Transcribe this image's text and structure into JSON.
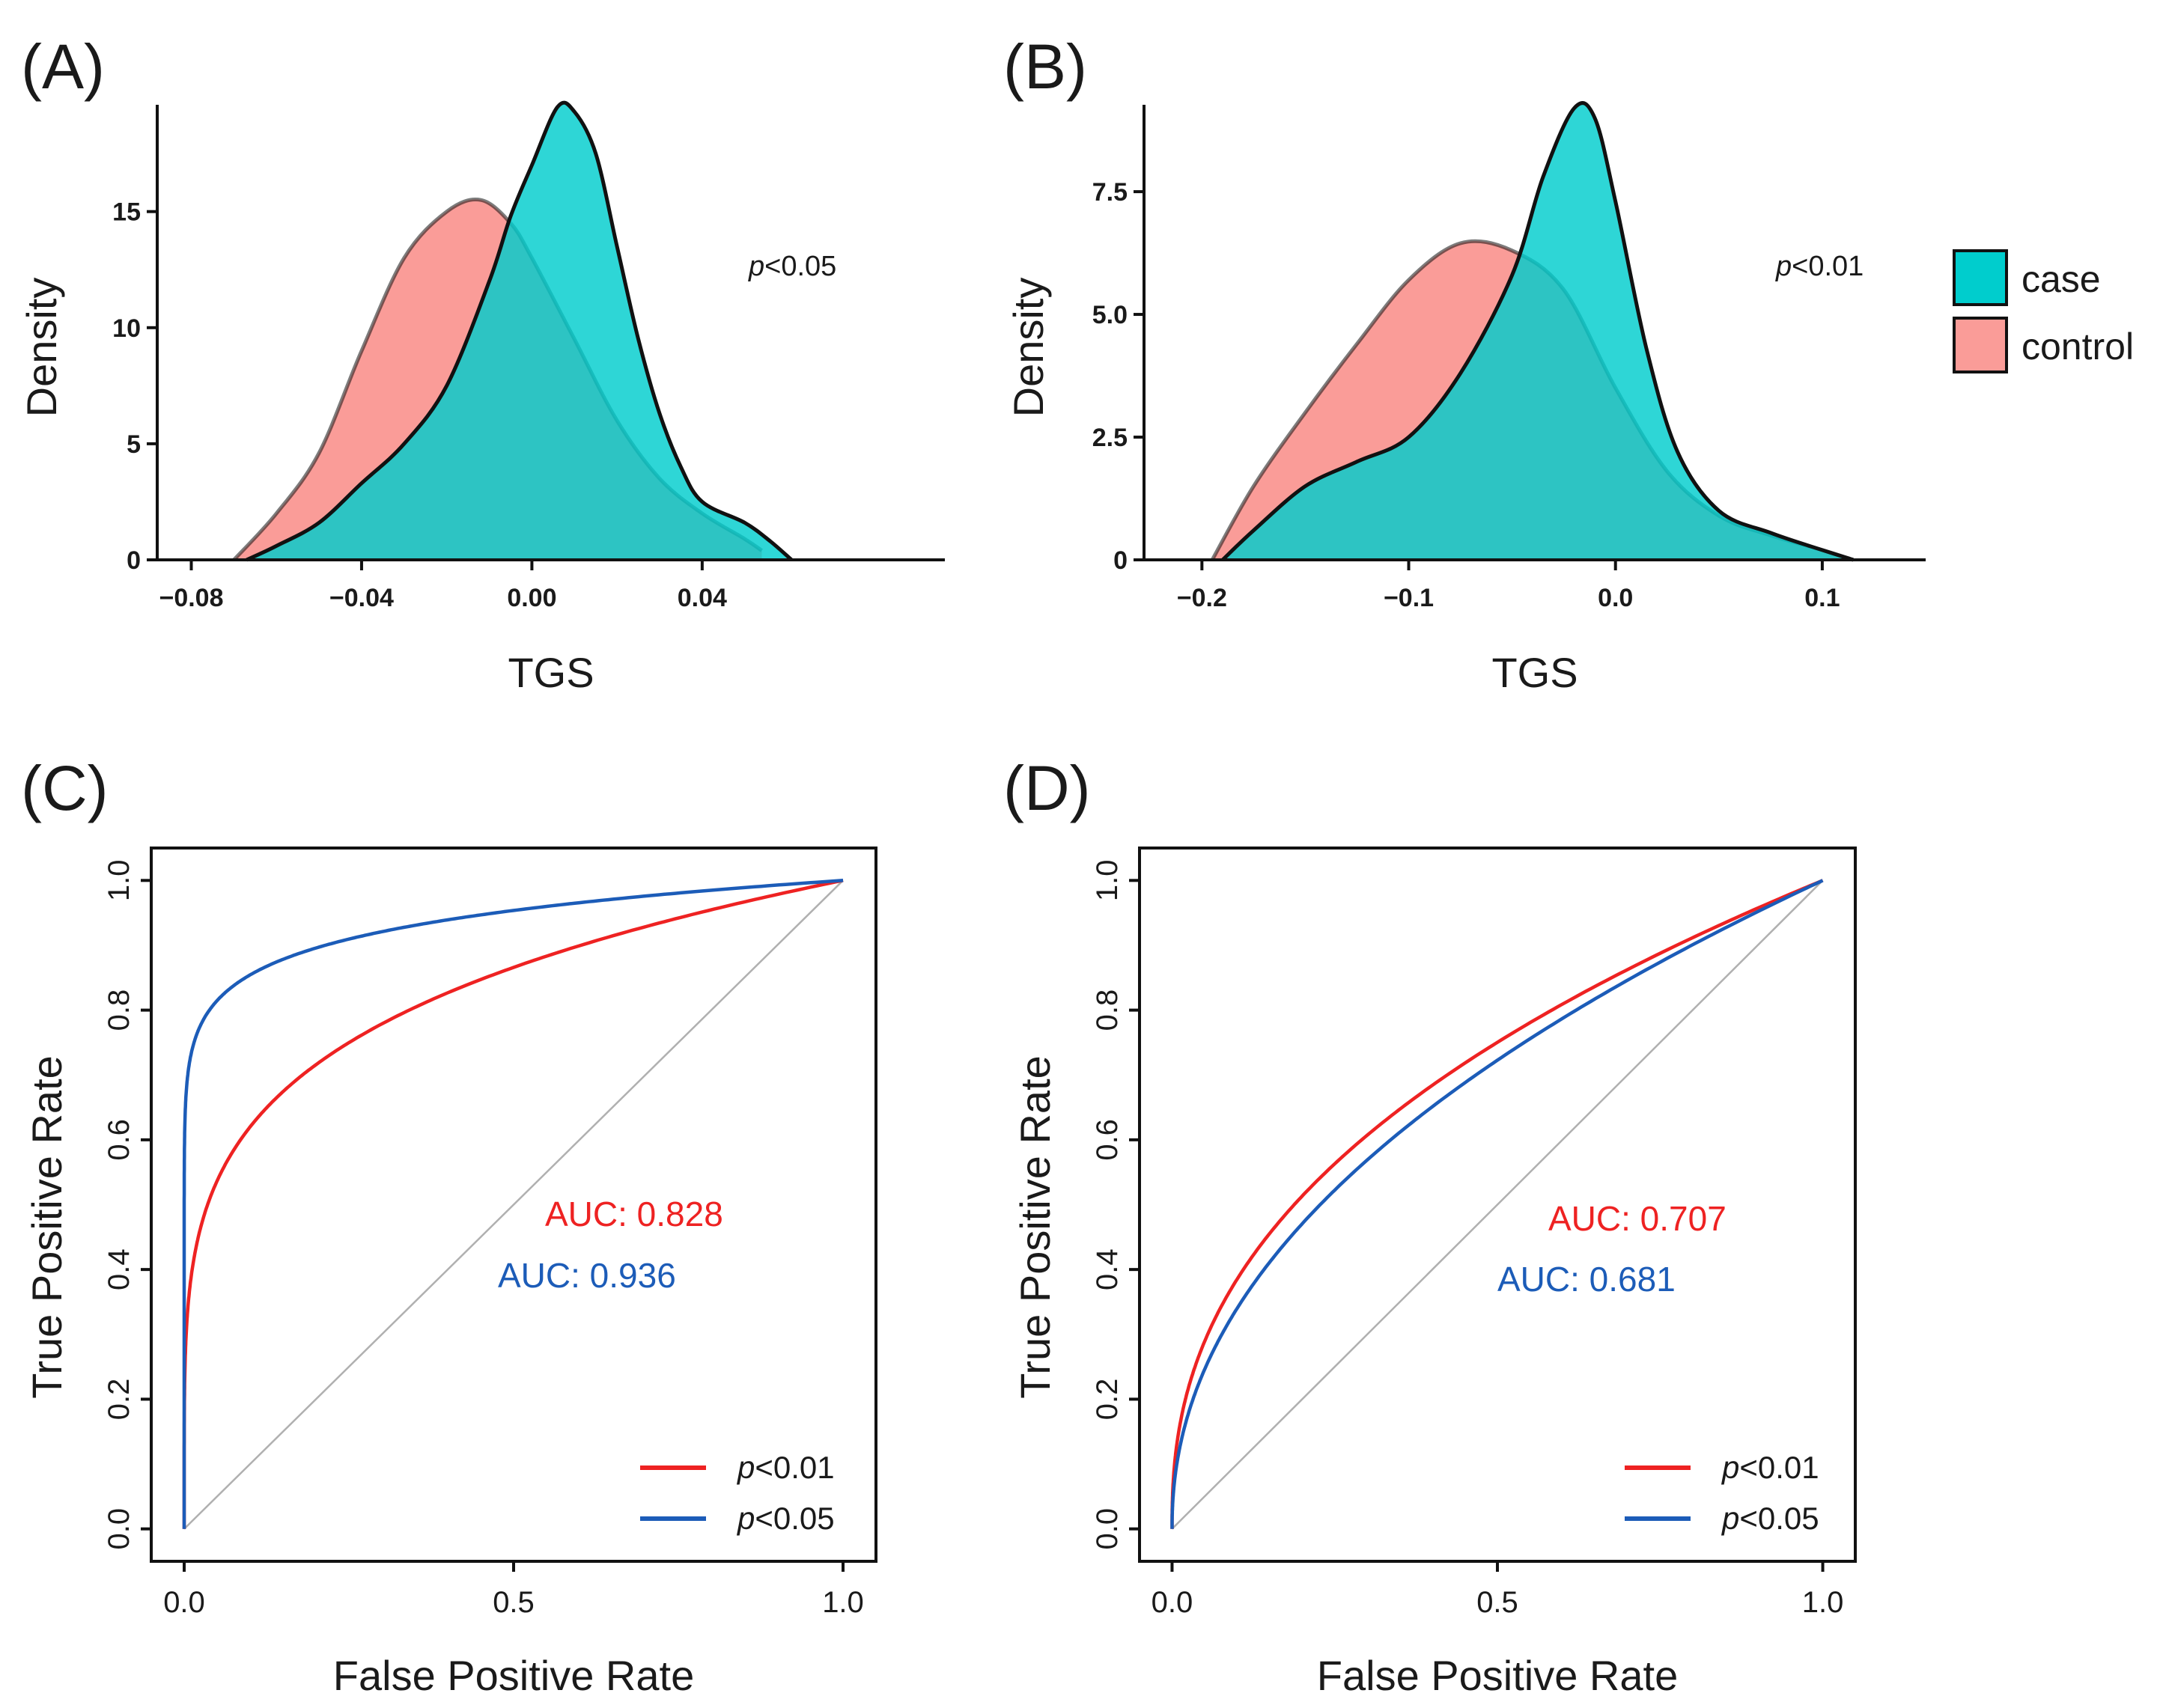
{
  "legend": {
    "entries": [
      {
        "label": "case",
        "color": "#00CDCD"
      },
      {
        "label": "control",
        "color": "#FA9C98"
      }
    ]
  },
  "chart_data": [
    {
      "id": "A",
      "panel_label": "(A)",
      "type": "area",
      "subtype": "density",
      "xlabel": "TGS",
      "ylabel": "Density",
      "xlim": [
        -0.088,
        0.097
      ],
      "ylim": [
        0,
        19.6
      ],
      "xticks": [
        -0.08,
        -0.04,
        0.0,
        0.04
      ],
      "xtick_labels": [
        "−0.08",
        "−0.04",
        "0.00",
        "0.04"
      ],
      "yticks": [
        0,
        5,
        10,
        15
      ],
      "ytick_labels": [
        "0",
        "5",
        "10",
        "15"
      ],
      "annotation": {
        "italic": "p",
        "rest": "<0.05"
      },
      "series": [
        {
          "name": "control",
          "color": "#FA9C98",
          "x": [
            -0.07,
            -0.06,
            -0.05,
            -0.04,
            -0.03,
            -0.02,
            -0.012,
            -0.005,
            0.0,
            0.01,
            0.02,
            0.03,
            0.04,
            0.05,
            0.054
          ],
          "y": [
            0.0,
            2.0,
            4.6,
            9.0,
            13.0,
            15.0,
            15.5,
            14.5,
            13.0,
            9.5,
            6.0,
            3.5,
            2.0,
            0.9,
            0.4
          ]
        },
        {
          "name": "case",
          "color": "#00CDCD",
          "x": [
            -0.067,
            -0.06,
            -0.05,
            -0.04,
            -0.03,
            -0.02,
            -0.01,
            -0.005,
            0.0,
            0.006,
            0.01,
            0.015,
            0.02,
            0.025,
            0.03,
            0.035,
            0.04,
            0.05,
            0.056,
            0.061
          ],
          "y": [
            0.0,
            0.6,
            1.6,
            3.3,
            5.0,
            7.5,
            12.0,
            14.8,
            17.0,
            19.5,
            19.3,
            17.5,
            13.5,
            9.5,
            6.3,
            4.0,
            2.5,
            1.6,
            0.8,
            0.0
          ]
        }
      ]
    },
    {
      "id": "B",
      "panel_label": "(B)",
      "type": "area",
      "subtype": "density",
      "xlabel": "TGS",
      "ylabel": "Density",
      "xlim": [
        -0.228,
        0.15
      ],
      "ylim": [
        0,
        9.27
      ],
      "xticks": [
        -0.2,
        -0.1,
        0.0,
        0.1
      ],
      "xtick_labels": [
        "−0.2",
        "−0.1",
        "0.0",
        "0.1"
      ],
      "yticks": [
        0,
        2.5,
        5.0,
        7.5
      ],
      "ytick_labels": [
        "0",
        "2.5",
        "5.0",
        "7.5"
      ],
      "annotation": {
        "italic": "p",
        "rest": "<0.01"
      },
      "series": [
        {
          "name": "control",
          "color": "#FA9C98",
          "x": [
            -0.195,
            -0.175,
            -0.15,
            -0.125,
            -0.1,
            -0.075,
            -0.05,
            -0.025,
            0.0,
            0.025,
            0.05,
            0.075,
            0.1,
            0.115
          ],
          "y": [
            0.0,
            1.5,
            3.0,
            4.4,
            5.7,
            6.45,
            6.3,
            5.5,
            3.5,
            1.8,
            0.9,
            0.5,
            0.2,
            0.0
          ]
        },
        {
          "name": "case",
          "color": "#00CDCD",
          "x": [
            -0.19,
            -0.175,
            -0.15,
            -0.125,
            -0.1,
            -0.075,
            -0.05,
            -0.035,
            -0.02,
            -0.01,
            0.0,
            0.015,
            0.03,
            0.05,
            0.075,
            0.1,
            0.115
          ],
          "y": [
            0.0,
            0.6,
            1.5,
            2.0,
            2.5,
            3.8,
            5.8,
            7.8,
            9.2,
            9.0,
            7.3,
            4.3,
            2.2,
            1.0,
            0.55,
            0.2,
            0.0
          ]
        }
      ]
    },
    {
      "id": "C",
      "panel_label": "(C)",
      "type": "line",
      "subtype": "roc",
      "xlabel": "False Positive Rate",
      "ylabel": "True Positive Rate",
      "xlim": [
        -0.05,
        1.05
      ],
      "ylim": [
        -0.05,
        1.05
      ],
      "xticks": [
        0.0,
        0.5,
        1.0
      ],
      "xtick_labels": [
        "0.0",
        "0.5",
        "1.0"
      ],
      "yticks": [
        0.0,
        0.2,
        0.4,
        0.6,
        0.8,
        1.0
      ],
      "ytick_labels": [
        "0.0",
        "0.2",
        "0.4",
        "0.6",
        "0.8",
        "1.0"
      ],
      "auc_labels": [
        {
          "text": "AUC: 0.828",
          "color": "#EE2222"
        },
        {
          "text": "AUC: 0.936",
          "color": "#1C5CB8"
        }
      ],
      "series": [
        {
          "name": "p<0.01",
          "legend_italic": "p",
          "legend_rest": "<0.01",
          "color": "#EE2222",
          "auc": 0.828,
          "exponent": 0.2077
        },
        {
          "name": "p<0.05",
          "legend_italic": "p",
          "legend_rest": "<0.05",
          "color": "#1C5CB8",
          "auc": 0.936,
          "exponent": 0.0684
        }
      ]
    },
    {
      "id": "D",
      "panel_label": "(D)",
      "type": "line",
      "subtype": "roc",
      "xlabel": "False Positive Rate",
      "ylabel": "True Positive Rate",
      "xlim": [
        -0.05,
        1.05
      ],
      "ylim": [
        -0.05,
        1.05
      ],
      "xticks": [
        0.0,
        0.5,
        1.0
      ],
      "xtick_labels": [
        "0.0",
        "0.5",
        "1.0"
      ],
      "yticks": [
        0.0,
        0.2,
        0.4,
        0.6,
        0.8,
        1.0
      ],
      "ytick_labels": [
        "0.0",
        "0.2",
        "0.4",
        "0.6",
        "0.8",
        "1.0"
      ],
      "auc_labels": [
        {
          "text": "AUC: 0.707",
          "color": "#EE2222"
        },
        {
          "text": "AUC: 0.681",
          "color": "#1C5CB8"
        }
      ],
      "series": [
        {
          "name": "p<0.01",
          "legend_italic": "p",
          "legend_rest": "<0.01",
          "color": "#EE2222",
          "auc": 0.707,
          "exponent": 0.4144
        },
        {
          "name": "p<0.05",
          "legend_italic": "p",
          "legend_rest": "<0.05",
          "color": "#1C5CB8",
          "auc": 0.681,
          "exponent": 0.4684
        }
      ]
    }
  ]
}
